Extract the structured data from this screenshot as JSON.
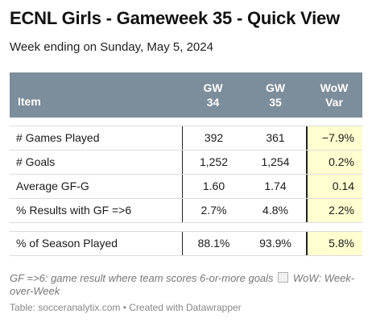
{
  "title": "ECNL Girls - Gameweek 35 - Quick View",
  "subtitle": "Week ending on Sunday, May 5, 2024",
  "colors": {
    "header_bg": "#7c8d9b",
    "highlight_bg": "#ffffd0"
  },
  "table": {
    "headers": {
      "item": "Item",
      "gw34_line1": "GW",
      "gw34_line2": "34",
      "gw35_line1": "GW",
      "gw35_line2": "35",
      "var_line1": "WoW",
      "var_line2": "Var"
    },
    "rows": [
      {
        "item": "# Games Played",
        "gw34": "392",
        "gw35": "361",
        "var": "−7.9%"
      },
      {
        "item": "# Goals",
        "gw34": "1,252",
        "gw35": "1,254",
        "var": "0.2%"
      },
      {
        "item": "Average GF-G",
        "gw34": "1.60",
        "gw35": "1.74",
        "var": "0.14"
      },
      {
        "item": "% Results with GF =>6",
        "gw34": "2.7%",
        "gw35": "4.8%",
        "var": "2.2%"
      },
      {
        "item": "% of Season Played",
        "gw34": "88.1%",
        "gw35": "93.9%",
        "var": "5.8%"
      }
    ]
  },
  "notes": {
    "part1": "GF =>6: game result where team scores 6-or-more goals",
    "part2": "WoW: Week-over-Week"
  },
  "source": "Table: socceranalytix.com • Created with Datawrapper"
}
